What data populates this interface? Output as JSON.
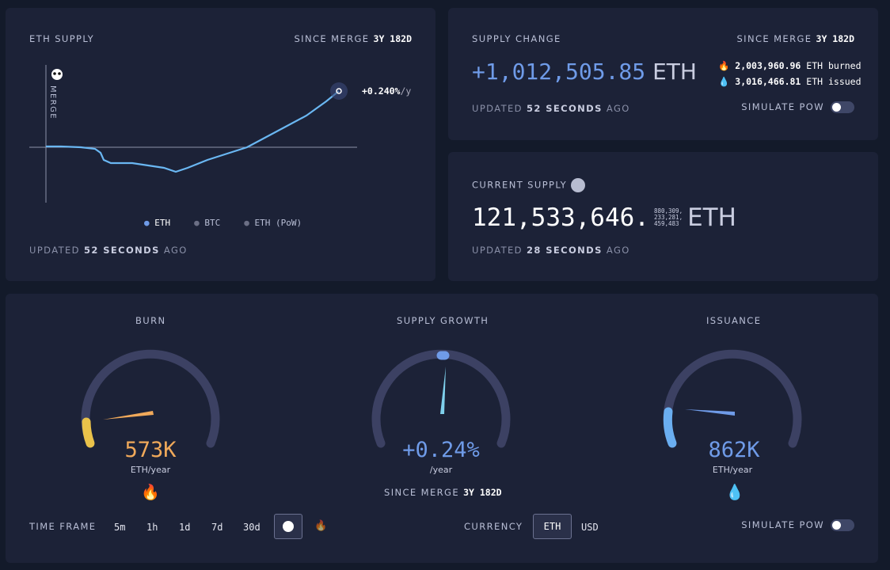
{
  "eth_supply": {
    "title": "ETH SUPPLY",
    "since_label": "SINCE MERGE",
    "since_value": "3y 182d",
    "merge_label": "MERGE",
    "rate": "+0.240%",
    "rate_unit": "/y",
    "legend": [
      "ETH",
      "BTC",
      "ETH (PoW)"
    ],
    "updated_prefix": "UPDATED",
    "updated_value": "52 SECONDS",
    "updated_suffix": "AGO"
  },
  "supply_change": {
    "title": "SUPPLY CHANGE",
    "since_label": "SINCE MERGE",
    "since_value": "3y 182d",
    "value": "+1,012,505.85",
    "unit": "ETH",
    "burned_value": "2,003,960.96",
    "burned_label": "ETH burned",
    "issued_value": "3,016,466.81",
    "issued_label": "ETH issued",
    "updated_prefix": "UPDATED",
    "updated_value": "52 SECONDS",
    "updated_suffix": "AGO",
    "simulate": "SIMULATE PoW"
  },
  "current_supply": {
    "title": "CURRENT SUPPLY",
    "integer": "121,533,646.",
    "decimals": [
      "880,309,",
      "233,281,",
      "459,483"
    ],
    "unit": "ETH",
    "updated_prefix": "UPDATED",
    "updated_value": "28 SECONDS",
    "updated_suffix": "AGO"
  },
  "gauges": {
    "burn": {
      "title": "BURN",
      "value": "573K",
      "unit": "ETH/year",
      "color": "#f0a95a"
    },
    "growth": {
      "title": "SUPPLY GROWTH",
      "value": "+0.24%",
      "unit": "/year",
      "since_label": "SINCE MERGE",
      "since_value": "3y 182d",
      "color": "#6f9be8"
    },
    "issuance": {
      "title": "ISSUANCE",
      "value": "862K",
      "unit": "ETH/year",
      "color": "#6f9be8"
    }
  },
  "controls": {
    "time_frame": "TIME FRAME",
    "frames": [
      "5m",
      "1h",
      "1d",
      "7d",
      "30d"
    ],
    "currency": "CURRENCY",
    "currencies": [
      "ETH",
      "USD"
    ],
    "simulate": "SIMULATE PoW"
  }
}
